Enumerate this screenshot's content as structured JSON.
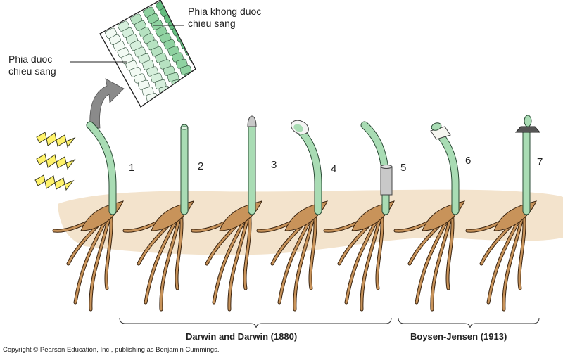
{
  "callouts": {
    "shaded_side": [
      "Phia khong duoc",
      "chieu sang"
    ],
    "lit_side": [
      "Phia duoc",
      "chieu sang"
    ]
  },
  "seedling_numbers": [
    "1",
    "2",
    "3",
    "4",
    "5",
    "6",
    "7"
  ],
  "groups": [
    {
      "label": "Darwin and Darwin (1880)"
    },
    {
      "label": "Boysen-Jensen (1913)"
    }
  ],
  "copyright": "Copyright © Pearson Education, Inc., publishing as Benjamin Cummings.",
  "colors": {
    "stem": "#a9dcb4",
    "stem_outline": "#2a4a35",
    "soil": "#f3e3cc",
    "root": "#c8935a",
    "light_bolt": "#fff36a",
    "cap": "#c8c8c8",
    "arrow": "#8a8a8a"
  }
}
